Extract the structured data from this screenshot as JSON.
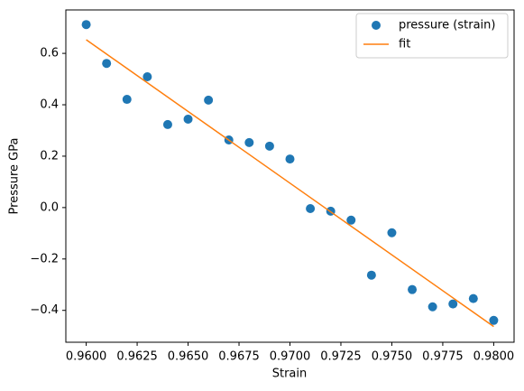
{
  "chart_data": {
    "type": "scatter",
    "xlabel": "Strain",
    "ylabel": "Pressure GPa",
    "xlim": [
      0.959,
      0.981
    ],
    "ylim": [
      -0.524,
      0.769
    ],
    "xticks": [
      {
        "value": 0.96,
        "label": "0.9600"
      },
      {
        "value": 0.9625,
        "label": "0.9625"
      },
      {
        "value": 0.965,
        "label": "0.9650"
      },
      {
        "value": 0.9675,
        "label": "0.9675"
      },
      {
        "value": 0.97,
        "label": "0.9700"
      },
      {
        "value": 0.9725,
        "label": "0.9725"
      },
      {
        "value": 0.975,
        "label": "0.9750"
      },
      {
        "value": 0.9775,
        "label": "0.9775"
      },
      {
        "value": 0.98,
        "label": "0.9800"
      }
    ],
    "yticks": [
      {
        "value": -0.4,
        "label": "−0.4"
      },
      {
        "value": -0.2,
        "label": "−0.2"
      },
      {
        "value": 0,
        "label": "0.0"
      },
      0.2,
      0.4,
      0.6
    ],
    "grid": false,
    "legend": "upper right",
    "series": [
      {
        "name": "pressure (strain)",
        "type": "scatter",
        "color": "#1f77b4",
        "x": [
          0.96,
          0.961,
          0.962,
          0.963,
          0.964,
          0.965,
          0.966,
          0.967,
          0.968,
          0.969,
          0.97,
          0.971,
          0.972,
          0.973,
          0.974,
          0.975,
          0.976,
          0.977,
          0.978,
          0.979,
          0.98
        ],
        "values": [
          0.712,
          0.561,
          0.421,
          0.509,
          0.323,
          0.344,
          0.418,
          0.263,
          0.253,
          0.239,
          0.189,
          -0.004,
          -0.014,
          -0.049,
          -0.263,
          -0.098,
          -0.319,
          -0.386,
          -0.375,
          -0.354,
          -0.439
        ]
      },
      {
        "name": "fit",
        "type": "line",
        "color": "#ff7f0e",
        "x": [
          0.96,
          0.98
        ],
        "values": [
          0.653,
          -0.463
        ]
      }
    ]
  }
}
